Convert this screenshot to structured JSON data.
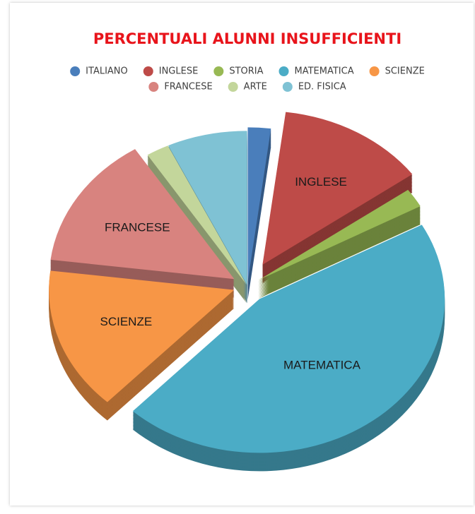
{
  "chart_data": {
    "type": "pie3d",
    "title": "PERCENTUALI ALUNNI INSUFFICIENTI",
    "categories": [
      "ITALIANO",
      "INGLESE",
      "STORIA",
      "MATEMATICA",
      "SCIENZE",
      "FRANCESE",
      "ARTE",
      "ED. FISICA"
    ],
    "values": [
      2,
      13,
      2,
      45,
      15,
      14,
      2,
      7
    ],
    "colors": [
      "#4a7ebb",
      "#be4b48",
      "#98b954",
      "#4bacc6",
      "#f79646",
      "#d8837f",
      "#c3d69b",
      "#7fc2d4"
    ],
    "legend": "top"
  }
}
